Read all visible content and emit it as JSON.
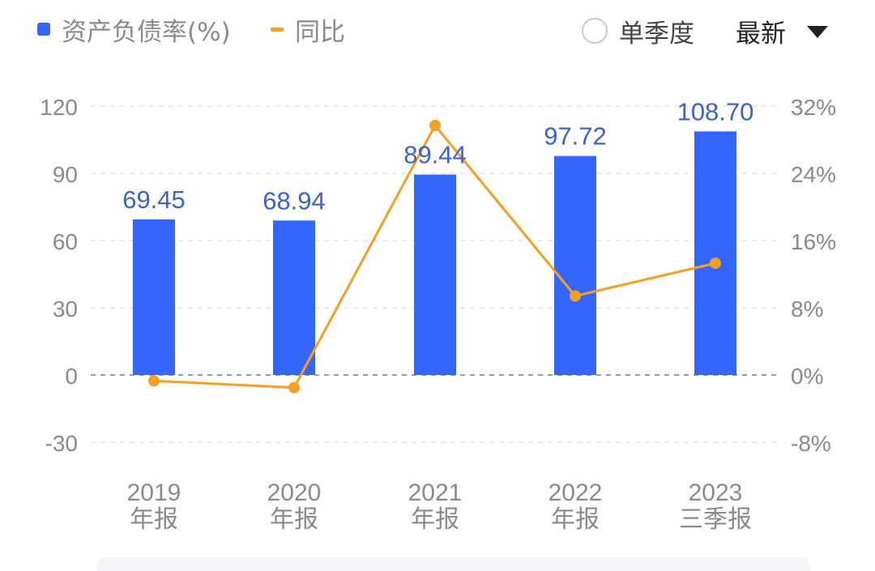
{
  "legend": {
    "bar_label": "资产负债率(%)",
    "line_label": "同比"
  },
  "controls": {
    "toggle_label": "单季度",
    "select_value": "最新"
  },
  "colors": {
    "bar": "#3366ff",
    "line": "#f5a020",
    "axis_text": "#8a8a8a",
    "data_label": "#3b63c9"
  },
  "chart_data": {
    "type": "bar",
    "categories": [
      [
        "2019",
        "年报"
      ],
      [
        "2020",
        "年报"
      ],
      [
        "2021",
        "年报"
      ],
      [
        "2022",
        "年报"
      ],
      [
        "2023",
        "三季报"
      ]
    ],
    "series": [
      {
        "name": "资产负债率(%)",
        "type": "bar",
        "axis": "left",
        "values": [
          69.45,
          68.94,
          89.44,
          97.72,
          108.7
        ],
        "labels": [
          "69.45",
          "68.94",
          "89.44",
          "97.72",
          "108.70"
        ]
      },
      {
        "name": "同比",
        "type": "line",
        "axis": "right",
        "values": [
          -0.7,
          -1.5,
          29.7,
          9.4,
          13.3
        ]
      }
    ],
    "left_axis": {
      "ticks": [
        120,
        90,
        60,
        30,
        0,
        -30
      ],
      "labels": [
        "120",
        "90",
        "60",
        "30",
        "0",
        "-30"
      ],
      "range": [
        -30,
        120
      ]
    },
    "right_axis": {
      "ticks": [
        32,
        24,
        16,
        8,
        0,
        -8
      ],
      "labels": [
        "32%",
        "24%",
        "16%",
        "8%",
        "0%",
        "-8%"
      ],
      "range": [
        -8,
        32
      ]
    },
    "grid": true,
    "legend_position": "top-left"
  }
}
